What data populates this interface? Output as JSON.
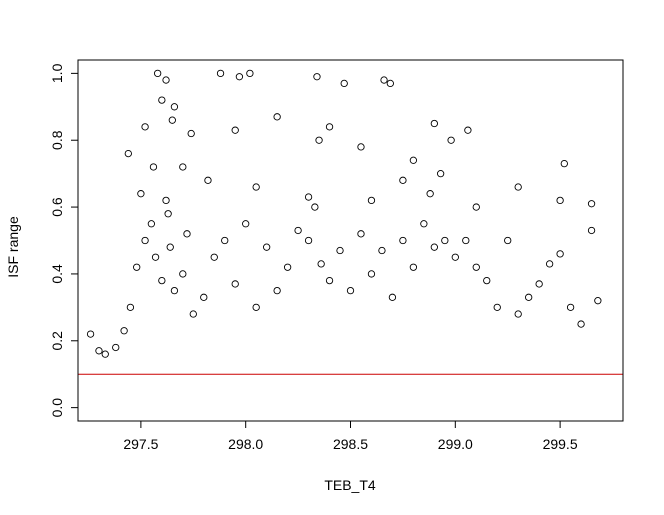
{
  "chart_data": {
    "type": "scatter",
    "title": "",
    "xlabel": "TEB_T4",
    "ylabel": "ISF range",
    "xlim": [
      297.2,
      299.8
    ],
    "ylim": [
      -0.04,
      1.04
    ],
    "x_ticks": [
      297.5,
      298.0,
      298.5,
      299.0,
      299.5
    ],
    "x_tick_labels": [
      "297.5",
      "298.0",
      "298.5",
      "299.0",
      "299.5"
    ],
    "y_ticks": [
      0.0,
      0.2,
      0.4,
      0.6,
      0.8,
      1.0
    ],
    "y_tick_labels": [
      "0.0",
      "0.2",
      "0.4",
      "0.6",
      "0.8",
      "1.0"
    ],
    "reference_line": {
      "y": 0.1,
      "color": "#cc0000"
    },
    "marker": {
      "shape": "open-circle",
      "color": "#000000"
    },
    "grid": false,
    "legend": "none",
    "series": [
      {
        "x": [
          297.26,
          297.3,
          297.33,
          297.38,
          297.42,
          297.45,
          297.48,
          297.52,
          297.55,
          297.57,
          297.6,
          297.62,
          297.64,
          297.66,
          297.7,
          297.72,
          297.75,
          297.8,
          297.85,
          297.9,
          297.95,
          298.0,
          298.05,
          298.1,
          298.15,
          298.2,
          298.25,
          298.3,
          298.33,
          298.36,
          298.4,
          298.45,
          298.5,
          298.55,
          298.6,
          298.65,
          298.7,
          298.75,
          298.8,
          298.85,
          298.9,
          298.95,
          299.0,
          299.05,
          299.1,
          299.15,
          299.2,
          299.25,
          299.3,
          299.35,
          299.4,
          299.45,
          299.5,
          299.55,
          299.6,
          299.65,
          299.68,
          297.58,
          297.62,
          297.65,
          297.88,
          297.97,
          298.02,
          298.34,
          298.47,
          298.66,
          298.69,
          298.9,
          299.06,
          297.44,
          297.52,
          297.6,
          297.66,
          297.74,
          297.95,
          298.15,
          298.35,
          298.4,
          298.55,
          298.8,
          298.93,
          298.98,
          299.52,
          297.5,
          297.56,
          297.63,
          297.7,
          297.82,
          298.05,
          298.3,
          298.6,
          298.75,
          298.88,
          299.1,
          299.3,
          299.5,
          299.65
        ],
        "y": [
          0.22,
          0.17,
          0.16,
          0.18,
          0.23,
          0.3,
          0.42,
          0.5,
          0.55,
          0.45,
          0.38,
          0.62,
          0.48,
          0.35,
          0.4,
          0.52,
          0.28,
          0.33,
          0.45,
          0.5,
          0.37,
          0.55,
          0.3,
          0.48,
          0.35,
          0.42,
          0.53,
          0.5,
          0.6,
          0.43,
          0.38,
          0.47,
          0.35,
          0.52,
          0.4,
          0.47,
          0.33,
          0.5,
          0.42,
          0.55,
          0.48,
          0.5,
          0.45,
          0.5,
          0.42,
          0.38,
          0.3,
          0.5,
          0.28,
          0.33,
          0.37,
          0.43,
          0.46,
          0.3,
          0.25,
          0.53,
          0.32,
          1.0,
          0.98,
          0.86,
          1.0,
          0.99,
          1.0,
          0.99,
          0.97,
          0.98,
          0.97,
          0.85,
          0.83,
          0.76,
          0.84,
          0.92,
          0.9,
          0.82,
          0.83,
          0.87,
          0.8,
          0.84,
          0.78,
          0.74,
          0.7,
          0.8,
          0.73,
          0.64,
          0.72,
          0.58,
          0.72,
          0.68,
          0.66,
          0.63,
          0.62,
          0.68,
          0.64,
          0.6,
          0.66,
          0.62,
          0.61
        ]
      }
    ]
  }
}
